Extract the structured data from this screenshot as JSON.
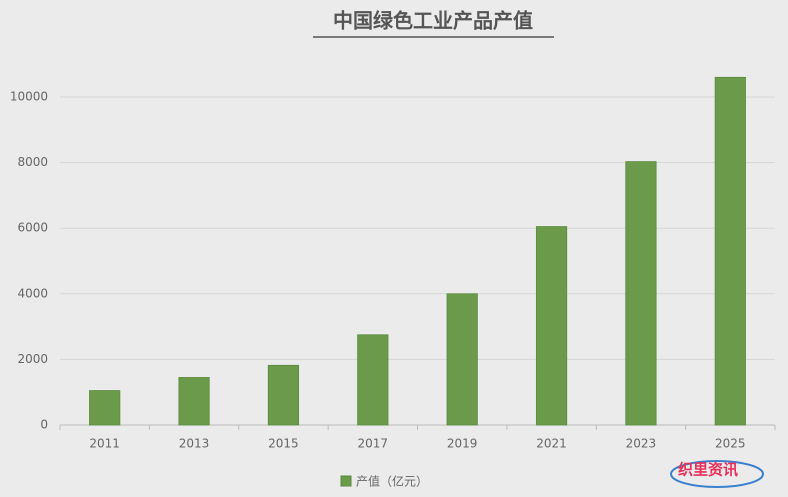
{
  "chart_data": {
    "type": "bar",
    "title": "中国绿色工业产品产值",
    "categories": [
      "2011",
      "2013",
      "2015",
      "2017",
      "2019",
      "2021",
      "2023",
      "2025"
    ],
    "series": [
      {
        "name": "产值（亿元）",
        "color": "#6b9a4b",
        "values": [
          1050,
          1450,
          1820,
          2750,
          4000,
          6050,
          8030,
          10600
        ]
      }
    ],
    "ylim": [
      0,
      11000
    ],
    "yticks": [
      0,
      2000,
      4000,
      6000,
      8000,
      10000
    ],
    "grid": true,
    "legend": "bottom",
    "watermark": "织里资讯"
  }
}
